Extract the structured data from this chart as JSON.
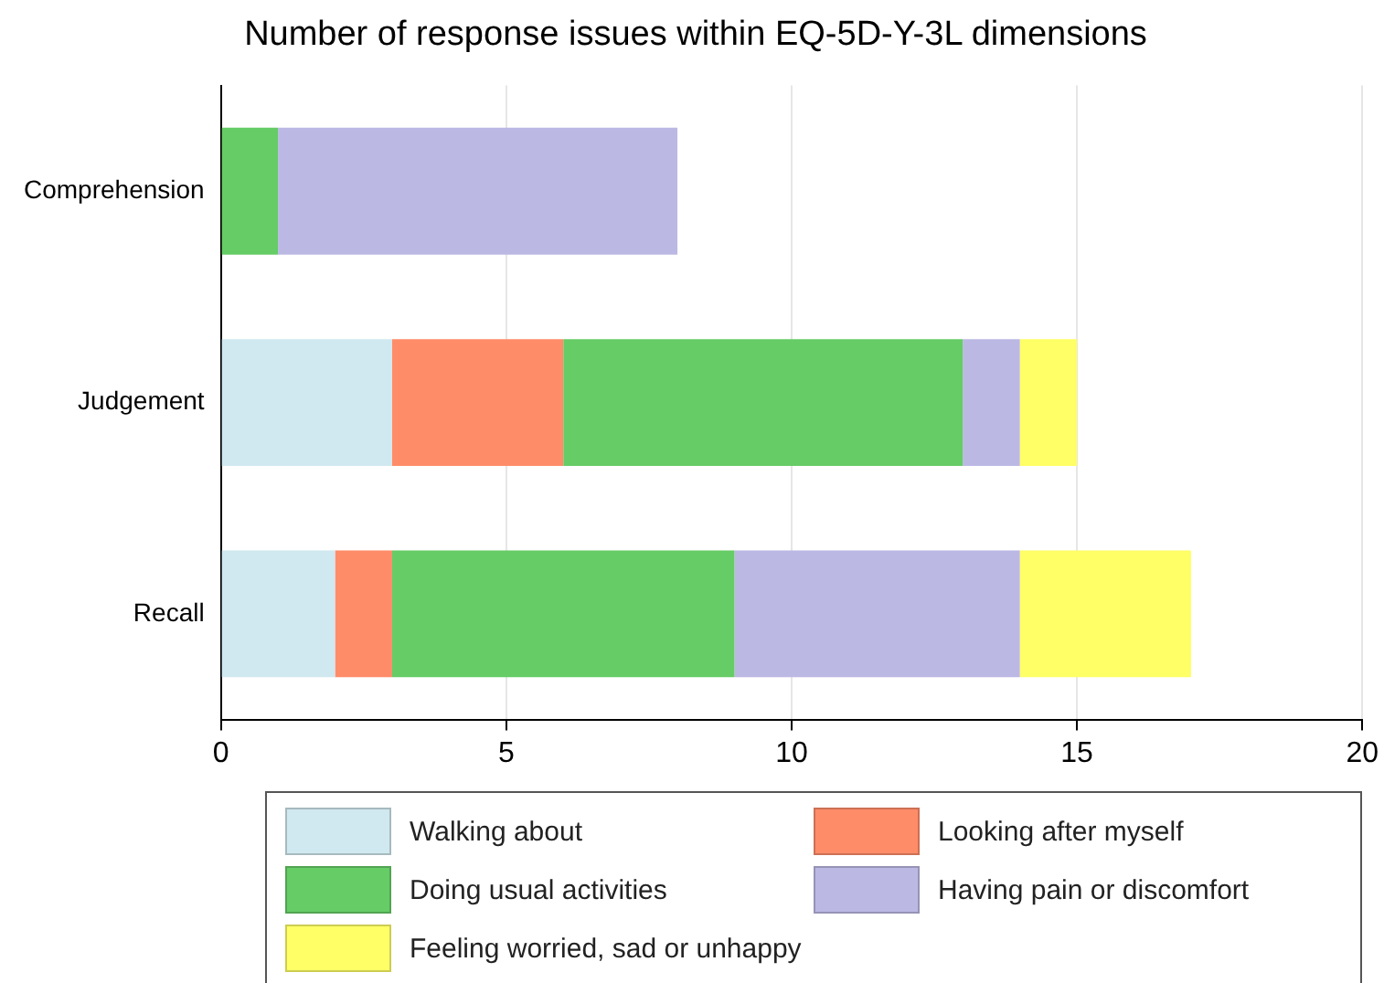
{
  "chart_data": {
    "type": "bar",
    "title": "Number of response issues within EQ-5D-Y-3L dimensions",
    "orientation": "horizontal",
    "stacked": true,
    "categories": [
      "Comprehension",
      "Judgement",
      "Recall"
    ],
    "series": [
      {
        "name": "Walking about",
        "color": "#d0e8ef",
        "values": [
          0,
          3,
          2
        ]
      },
      {
        "name": "Looking after myself",
        "color": "#ff8c69",
        "values": [
          0,
          3,
          1
        ]
      },
      {
        "name": "Doing usual activities",
        "color": "#66cc66",
        "values": [
          1,
          7,
          6
        ]
      },
      {
        "name": "Having pain or discomfort",
        "color": "#bcb8e4",
        "values": [
          7,
          1,
          5
        ]
      },
      {
        "name": "Feeling worried, sad or unhappy",
        "color": "#ffff66",
        "values": [
          0,
          1,
          3
        ]
      }
    ],
    "xlim": [
      0,
      20
    ],
    "xticks": [
      0,
      5,
      10,
      15,
      20
    ],
    "grid": "x",
    "legend": "bottom"
  }
}
